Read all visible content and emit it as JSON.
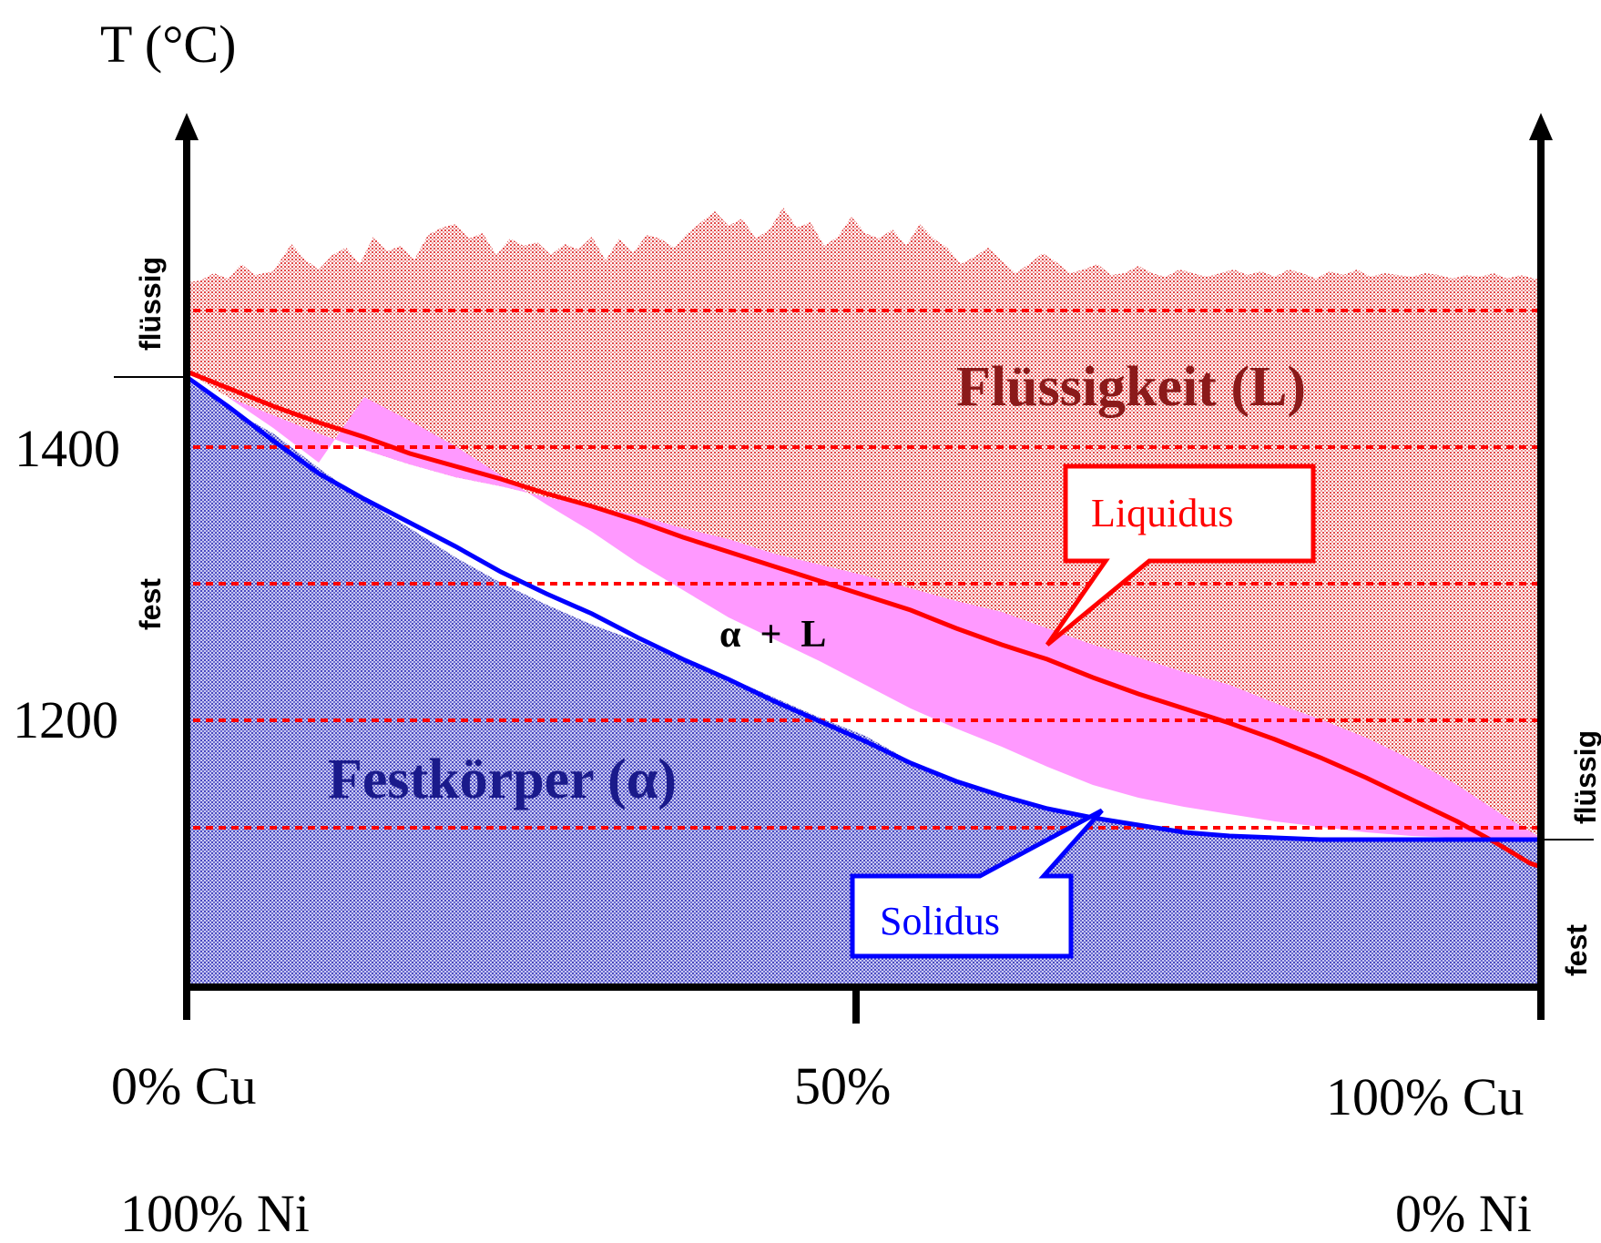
{
  "diagram": {
    "title_axis": "T (°C)",
    "y_ticks": [
      {
        "value": 1400,
        "label": "1400"
      },
      {
        "value": 1200,
        "label": "1200"
      }
    ],
    "x_labels": {
      "left_top": "0% Cu",
      "middle": "50%",
      "right_top": "100% Cu",
      "left_bottom": "100% Ni",
      "right_bottom": "0% Ni"
    },
    "side_labels": {
      "left_liquid": "flüssig",
      "left_solid": "fest",
      "right_liquid": "flüssig",
      "right_solid": "fest"
    },
    "regions": {
      "liquid": "Flüssigkeit (L)",
      "two_phase": "α  +  L",
      "solid": "Festkörper (α)"
    },
    "callouts": {
      "liquidus": "Liquidus",
      "solidus": "Solidus"
    },
    "colors": {
      "liquid_fill": "#f4b8b8",
      "two_phase_fill": "#ff99ff",
      "solid_fill": "#8f8fd6",
      "liquidus_line": "#ff0000",
      "solidus_line": "#0000ff",
      "liquid_text": "#8b1a1a",
      "solid_text": "#1a1a8b",
      "dashed_line": "#ff0000"
    }
  }
}
